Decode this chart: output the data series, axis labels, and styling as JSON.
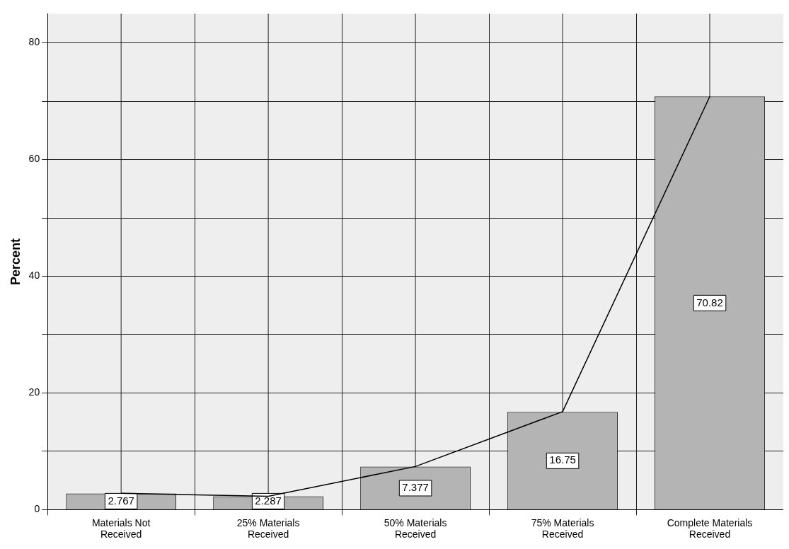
{
  "chart_data": {
    "type": "bar",
    "ylabel": "Percent",
    "categories": [
      "Materials Not Received",
      "25% Materials Received",
      "50% Materials Received",
      "75% Materials Received",
      "Complete Materials Received"
    ],
    "series": [
      {
        "color": "#b4b4b4",
        "values": [
          2.767,
          2.287,
          7.377,
          16.75,
          70.82
        ],
        "value_labels": [
          "2.767",
          "2.287",
          "7.377",
          "16.75",
          "70.82"
        ]
      },
      {
        "type": "line",
        "color": "#000000",
        "values": [
          2.8,
          2.3,
          7.4,
          16.8,
          70.8
        ]
      }
    ],
    "ylim": [
      0,
      85
    ],
    "yticks": [
      0,
      {
        "value": 10,
        "label": null
      },
      20,
      {
        "value": 30,
        "label": null
      },
      40,
      {
        "value": 50,
        "label": null
      },
      60,
      {
        "value": 70,
        "label": null
      },
      80
    ],
    "grid": true,
    "legend": false,
    "marker": "none"
  }
}
